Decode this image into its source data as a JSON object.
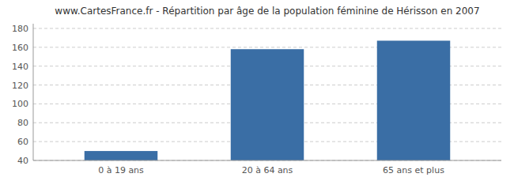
{
  "chart_data": {
    "type": "bar",
    "title": "www.CartesFrance.fr - Répartition par âge de la population féminine de Hérisson en 2007",
    "categories": [
      "0 à 19 ans",
      "20 à 64 ans",
      "65 ans et plus"
    ],
    "values": [
      50,
      158,
      167
    ],
    "color": "#3a6ea5",
    "ylim": [
      40,
      185
    ],
    "yticks": [
      40,
      60,
      80,
      100,
      120,
      140,
      160,
      180
    ],
    "grid": true
  }
}
